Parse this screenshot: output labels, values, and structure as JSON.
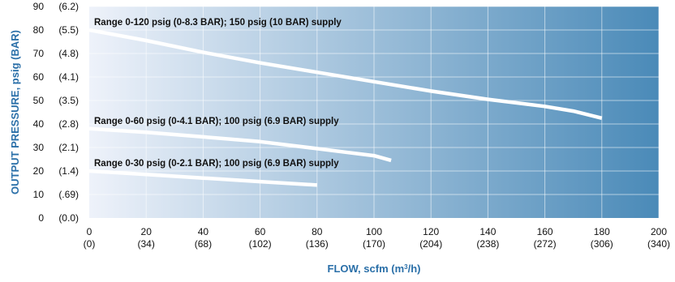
{
  "chart_data": {
    "type": "line",
    "xlabel_main": "FLOW, scfm (m",
    "xlabel_sup": "3",
    "xlabel_end": "/h)",
    "ylabel": "OUTPUT PRESSURE, psig (BAR)",
    "xlim": [
      0,
      200
    ],
    "ylim": [
      0,
      90
    ],
    "x_ticks": [
      {
        "value": 0,
        "label": "0",
        "sublabel": "(0)"
      },
      {
        "value": 20,
        "label": "20",
        "sublabel": "(34)"
      },
      {
        "value": 40,
        "label": "40",
        "sublabel": "(68)"
      },
      {
        "value": 60,
        "label": "60",
        "sublabel": "(102)"
      },
      {
        "value": 80,
        "label": "80",
        "sublabel": "(136)"
      },
      {
        "value": 100,
        "label": "100",
        "sublabel": "(170)"
      },
      {
        "value": 120,
        "label": "120",
        "sublabel": "(204)"
      },
      {
        "value": 140,
        "label": "140",
        "sublabel": "(238)"
      },
      {
        "value": 160,
        "label": "160",
        "sublabel": "(272)"
      },
      {
        "value": 180,
        "label": "180",
        "sublabel": "(306)"
      },
      {
        "value": 200,
        "label": "200",
        "sublabel": "(340)"
      }
    ],
    "y_ticks": [
      {
        "value": 0,
        "label": "0",
        "sublabel": "(0.0)"
      },
      {
        "value": 10,
        "label": "10",
        "sublabel": "(.69)"
      },
      {
        "value": 20,
        "label": "20",
        "sublabel": "(1.4)"
      },
      {
        "value": 30,
        "label": "30",
        "sublabel": "(2.1)"
      },
      {
        "value": 40,
        "label": "40",
        "sublabel": "(2.8)"
      },
      {
        "value": 50,
        "label": "50",
        "sublabel": "(3.5)"
      },
      {
        "value": 60,
        "label": "60",
        "sublabel": "(4.1)"
      },
      {
        "value": 70,
        "label": "70",
        "sublabel": "(4.8)"
      },
      {
        "value": 80,
        "label": "80",
        "sublabel": "(5.5)"
      },
      {
        "value": 90,
        "label": "90",
        "sublabel": "(6.2)"
      }
    ],
    "grid": true,
    "series": [
      {
        "name": "Range 0-120 psig (0-8.3 BAR); 150 psig (10 BAR) supply",
        "x": [
          0,
          20,
          40,
          60,
          80,
          100,
          120,
          140,
          160,
          170,
          180
        ],
        "y": [
          80,
          75.5,
          70.5,
          66,
          62,
          58,
          54,
          50.5,
          47.5,
          45.5,
          42.5
        ]
      },
      {
        "name": "Range 0-60 psig (0-4.1 BAR); 100 psig (6.9 BAR) supply",
        "x": [
          0,
          20,
          40,
          60,
          80,
          90,
          100,
          106
        ],
        "y": [
          38,
          36.5,
          34.5,
          32.5,
          29.5,
          28,
          26.5,
          24.5
        ]
      },
      {
        "name": "Range 0-30 psig (0-2.1 BAR); 100 psig (6.9 BAR) supply",
        "x": [
          0,
          20,
          40,
          60,
          80
        ],
        "y": [
          20,
          18.5,
          17,
          15.5,
          14
        ]
      }
    ]
  },
  "colors": {
    "plot_gradient_start": "#eef2fa",
    "plot_gradient_end": "#4a8ab8",
    "curve": "#ffffff",
    "axis_title": "#2a6fa8",
    "text": "#111111"
  }
}
